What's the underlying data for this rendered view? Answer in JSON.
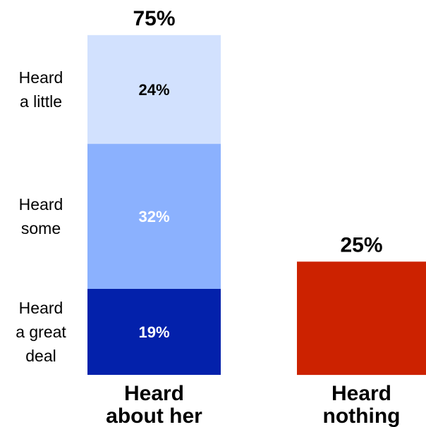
{
  "chart_data": {
    "type": "bar",
    "stacked": true,
    "categories": [
      "Heard about her",
      "Heard nothing"
    ],
    "totals": [
      "75%",
      "25%"
    ],
    "ylim": [
      0,
      80
    ],
    "grid": false,
    "bars": [
      {
        "category": "Heard about her",
        "total_label": "75%",
        "category_lines": [
          "Heard",
          "about her"
        ],
        "segments": [
          {
            "label_lines": [
              "Heard",
              "a great",
              "deal"
            ],
            "value": 19,
            "value_label": "19%",
            "color": "#0321ab",
            "text_color": "#ffffff"
          },
          {
            "label_lines": [
              "Heard",
              "some"
            ],
            "value": 32,
            "value_label": "32%",
            "color": "#8bb1fe",
            "text_color": "#ffffff"
          },
          {
            "label_lines": [
              "Heard",
              "a little"
            ],
            "value": 24,
            "value_label": "24%",
            "color": "#d2e1fe",
            "text_color": "#000000"
          }
        ]
      },
      {
        "category": "Heard nothing",
        "total_label": "25%",
        "category_lines": [
          "Heard",
          "nothing"
        ],
        "segments": [
          {
            "label_lines": [],
            "value": 25,
            "value_label": "",
            "color": "#cc2200",
            "text_color": "#ffffff"
          }
        ]
      }
    ]
  }
}
